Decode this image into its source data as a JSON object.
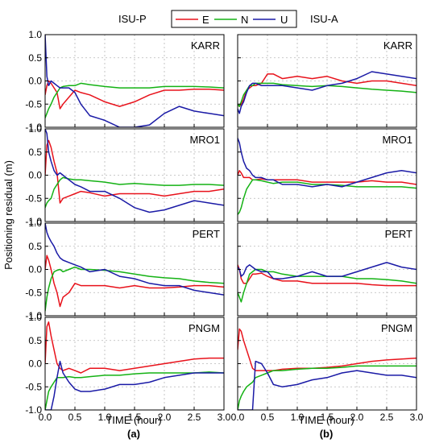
{
  "legend": {
    "left_label": "ISU-P",
    "right_label": "ISU-A",
    "entries": [
      {
        "name": "E",
        "color": "#e8121b"
      },
      {
        "name": "N",
        "color": "#14b214"
      },
      {
        "name": "U",
        "color": "#1a1aa6"
      }
    ]
  },
  "ylabel": "Positioning residual (m)",
  "xlabel": "TIME (hour)",
  "columns": [
    {
      "panel_label": "(a)"
    },
    {
      "panel_label": "(b)"
    }
  ],
  "x_ticks": [
    "0.0",
    "0.5",
    "1.0",
    "1.5",
    "2.0",
    "2.5",
    "3.0"
  ],
  "y_ticks": [
    "1.0",
    "0.5",
    "0.0",
    "-0.5",
    "-1.0"
  ],
  "chart_data": {
    "type": "line",
    "xlim": [
      0,
      3
    ],
    "ylim": [
      -1,
      1
    ],
    "grid": true,
    "x": [
      0.0,
      0.03,
      0.06,
      0.1,
      0.15,
      0.2,
      0.25,
      0.3,
      0.4,
      0.5,
      0.6,
      0.75,
      1.0,
      1.25,
      1.5,
      1.75,
      2.0,
      2.25,
      2.5,
      2.75,
      3.0
    ],
    "panels": [
      {
        "column": "(a)",
        "station": "KARR",
        "series": [
          {
            "name": "E",
            "values": [
              -0.3,
              -0.1,
              0.0,
              -0.05,
              -0.15,
              -0.25,
              -0.6,
              -0.5,
              -0.35,
              -0.2,
              -0.25,
              -0.3,
              -0.45,
              -0.55,
              -0.45,
              -0.3,
              -0.2,
              -0.2,
              -0.18,
              -0.18,
              -0.2
            ]
          },
          {
            "name": "N",
            "values": [
              -0.8,
              -0.7,
              -0.6,
              -0.5,
              -0.35,
              -0.25,
              -0.15,
              -0.12,
              -0.1,
              -0.1,
              -0.05,
              -0.08,
              -0.12,
              -0.15,
              -0.15,
              -0.15,
              -0.12,
              -0.12,
              -0.12,
              -0.13,
              -0.15
            ]
          },
          {
            "name": "U",
            "values": [
              1.0,
              0.1,
              -0.1,
              0.0,
              -0.05,
              -0.1,
              -0.15,
              -0.15,
              -0.15,
              -0.25,
              -0.5,
              -0.75,
              -0.85,
              -1.0,
              -1.0,
              -0.95,
              -0.7,
              -0.55,
              -0.65,
              -0.7,
              -0.75
            ]
          }
        ]
      },
      {
        "column": "(a)",
        "station": "MRO1",
        "series": [
          {
            "name": "E",
            "values": [
              0.0,
              0.65,
              0.75,
              0.6,
              0.3,
              0.05,
              -0.6,
              -0.5,
              -0.45,
              -0.4,
              -0.35,
              -0.38,
              -0.45,
              -0.4,
              -0.4,
              -0.4,
              -0.45,
              -0.4,
              -0.35,
              -0.35,
              -0.3
            ]
          },
          {
            "name": "N",
            "values": [
              -0.7,
              -0.6,
              -0.55,
              -0.5,
              -0.3,
              -0.2,
              -0.1,
              -0.05,
              -0.08,
              -0.1,
              -0.1,
              -0.12,
              -0.15,
              -0.2,
              -0.18,
              -0.2,
              -0.22,
              -0.22,
              -0.2,
              -0.2,
              -0.22
            ]
          },
          {
            "name": "U",
            "values": [
              1.0,
              0.9,
              0.5,
              0.3,
              0.1,
              0.0,
              0.05,
              0.0,
              -0.1,
              -0.2,
              -0.25,
              -0.35,
              -0.35,
              -0.5,
              -0.7,
              -0.8,
              -0.75,
              -0.65,
              -0.55,
              -0.6,
              -0.65
            ]
          }
        ]
      },
      {
        "column": "(a)",
        "station": "PERT",
        "series": [
          {
            "name": "E",
            "values": [
              0.0,
              0.3,
              0.2,
              0.0,
              -0.3,
              -0.5,
              -0.8,
              -0.6,
              -0.5,
              -0.3,
              -0.35,
              -0.35,
              -0.35,
              -0.4,
              -0.35,
              -0.4,
              -0.4,
              -0.38,
              -0.35,
              -0.35,
              -0.38
            ]
          },
          {
            "name": "N",
            "values": [
              -0.9,
              -0.6,
              -0.4,
              -0.2,
              -0.05,
              -0.02,
              0.0,
              -0.05,
              0.0,
              0.05,
              0.0,
              0.0,
              -0.02,
              -0.05,
              -0.1,
              -0.15,
              -0.18,
              -0.2,
              -0.25,
              -0.28,
              -0.3
            ]
          },
          {
            "name": "U",
            "values": [
              1.0,
              0.8,
              0.7,
              0.6,
              0.5,
              0.35,
              0.25,
              0.2,
              0.15,
              0.1,
              0.05,
              -0.05,
              0.0,
              -0.15,
              -0.2,
              -0.3,
              -0.35,
              -0.35,
              -0.45,
              -0.5,
              -0.55
            ]
          }
        ]
      },
      {
        "column": "(a)",
        "station": "PNGM",
        "series": [
          {
            "name": "E",
            "values": [
              0.0,
              0.8,
              0.9,
              0.6,
              0.3,
              0.0,
              -0.1,
              -0.15,
              -0.1,
              -0.15,
              -0.2,
              -0.1,
              -0.1,
              -0.15,
              -0.1,
              -0.05,
              0.0,
              0.05,
              0.1,
              0.12,
              0.12
            ]
          },
          {
            "name": "N",
            "values": [
              -1.0,
              -0.8,
              -0.6,
              -0.5,
              -0.4,
              -0.3,
              -0.3,
              -0.3,
              -0.28,
              -0.3,
              -0.3,
              -0.28,
              -0.25,
              -0.25,
              -0.22,
              -0.2,
              -0.2,
              -0.2,
              -0.2,
              -0.18,
              -0.2
            ]
          },
          {
            "name": "U",
            "values": [
              -1.0,
              -1.0,
              -1.0,
              -1.0,
              -0.7,
              -0.3,
              0.05,
              -0.2,
              -0.4,
              -0.55,
              -0.6,
              -0.6,
              -0.55,
              -0.45,
              -0.45,
              -0.4,
              -0.3,
              -0.25,
              -0.2,
              -0.2,
              -0.2
            ]
          }
        ]
      },
      {
        "column": "(b)",
        "station": "KARR",
        "series": [
          {
            "name": "E",
            "values": [
              -0.5,
              -0.55,
              -0.5,
              -0.4,
              -0.2,
              -0.15,
              -0.1,
              -0.1,
              -0.05,
              0.15,
              0.15,
              0.05,
              0.1,
              0.05,
              0.1,
              0.0,
              -0.05,
              0.0,
              0.0,
              -0.05,
              -0.1
            ]
          },
          {
            "name": "N",
            "values": [
              -0.5,
              -0.55,
              -0.45,
              -0.3,
              -0.2,
              -0.1,
              -0.1,
              -0.05,
              -0.05,
              -0.05,
              -0.05,
              -0.08,
              -0.1,
              -0.12,
              -0.1,
              -0.12,
              -0.15,
              -0.18,
              -0.2,
              -0.22,
              -0.25
            ]
          },
          {
            "name": "U",
            "values": [
              -0.6,
              -0.7,
              -0.55,
              -0.45,
              -0.25,
              -0.1,
              -0.05,
              -0.05,
              -0.1,
              -0.1,
              -0.1,
              -0.1,
              -0.15,
              -0.2,
              -0.1,
              -0.05,
              0.05,
              0.2,
              0.15,
              0.1,
              0.05
            ]
          }
        ]
      },
      {
        "column": "(b)",
        "station": "MRO1",
        "series": [
          {
            "name": "E",
            "values": [
              0.0,
              0.1,
              0.05,
              -0.05,
              -0.05,
              -0.05,
              -0.1,
              -0.1,
              -0.08,
              -0.1,
              -0.1,
              -0.1,
              -0.1,
              -0.15,
              -0.15,
              -0.15,
              -0.15,
              -0.12,
              -0.15,
              -0.15,
              -0.2
            ]
          },
          {
            "name": "N",
            "values": [
              -0.85,
              -0.8,
              -0.7,
              -0.5,
              -0.3,
              -0.2,
              -0.1,
              -0.1,
              -0.12,
              -0.15,
              -0.18,
              -0.15,
              -0.15,
              -0.2,
              -0.2,
              -0.22,
              -0.25,
              -0.25,
              -0.25,
              -0.25,
              -0.28
            ]
          },
          {
            "name": "U",
            "values": [
              0.8,
              0.7,
              0.5,
              0.3,
              0.15,
              0.1,
              0.0,
              -0.05,
              -0.05,
              -0.1,
              -0.1,
              -0.2,
              -0.2,
              -0.25,
              -0.2,
              -0.25,
              -0.15,
              -0.05,
              0.05,
              0.1,
              0.05
            ]
          }
        ]
      },
      {
        "column": "(b)",
        "station": "PERT",
        "series": [
          {
            "name": "E",
            "values": [
              0.1,
              0.0,
              -0.2,
              -0.3,
              -0.3,
              -0.2,
              -0.1,
              -0.1,
              -0.08,
              -0.15,
              -0.2,
              -0.25,
              -0.25,
              -0.3,
              -0.3,
              -0.3,
              -0.3,
              -0.33,
              -0.35,
              -0.35,
              -0.35
            ]
          },
          {
            "name": "N",
            "values": [
              -0.5,
              -0.6,
              -0.7,
              -0.5,
              -0.3,
              -0.1,
              -0.05,
              0.0,
              0.0,
              -0.05,
              -0.05,
              -0.1,
              -0.15,
              -0.15,
              -0.15,
              -0.15,
              -0.2,
              -0.2,
              -0.22,
              -0.25,
              -0.3
            ]
          },
          {
            "name": "U",
            "values": [
              0.05,
              0.0,
              -0.15,
              -0.1,
              0.05,
              0.1,
              0.05,
              0.0,
              -0.05,
              -0.05,
              -0.2,
              -0.2,
              -0.15,
              -0.05,
              -0.15,
              -0.15,
              -0.05,
              0.05,
              0.15,
              0.05,
              0.0
            ]
          }
        ]
      },
      {
        "column": "(b)",
        "station": "PNGM",
        "series": [
          {
            "name": "E",
            "values": [
              0.3,
              0.75,
              0.7,
              0.5,
              0.3,
              0.1,
              -0.1,
              -0.15,
              -0.15,
              -0.15,
              -0.15,
              -0.12,
              -0.1,
              -0.1,
              -0.08,
              -0.05,
              0.0,
              0.05,
              0.08,
              0.1,
              0.12
            ]
          },
          {
            "name": "N",
            "values": [
              -1.0,
              -0.8,
              -0.7,
              -0.6,
              -0.5,
              -0.45,
              -0.4,
              -0.3,
              -0.25,
              -0.2,
              -0.15,
              -0.15,
              -0.12,
              -0.1,
              -0.1,
              -0.08,
              -0.05,
              -0.05,
              -0.05,
              -0.05,
              -0.05
            ]
          },
          {
            "name": "U",
            "values": [
              -1.0,
              -1.0,
              -1.0,
              -1.0,
              -1.0,
              -1.0,
              -1.0,
              0.05,
              0.0,
              -0.2,
              -0.45,
              -0.5,
              -0.45,
              -0.35,
              -0.3,
              -0.2,
              -0.15,
              -0.2,
              -0.25,
              -0.25,
              -0.3
            ]
          }
        ]
      }
    ]
  }
}
